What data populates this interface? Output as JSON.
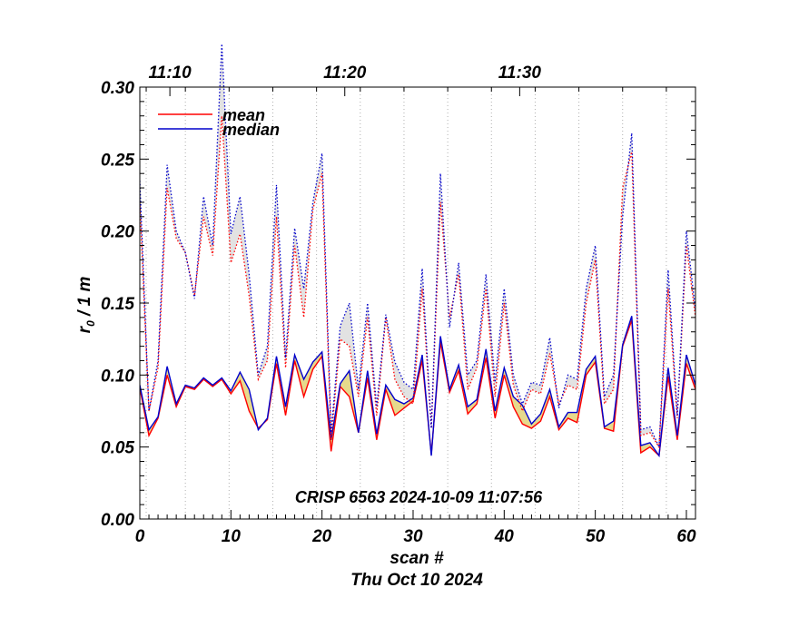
{
  "chart_data": {
    "type": "line",
    "title": "",
    "xlabel": "scan #",
    "xlabel2": "Thu Oct 10 2024",
    "ylabel": "r",
    "ylabel_sub": "0",
    "ylabel_suffix": " / 1 m",
    "annotation": "CRISP 6563 2024-10-09 11:07:56",
    "xlim": [
      0,
      61
    ],
    "ylim": [
      0,
      0.3
    ],
    "xticks": [
      0,
      10,
      20,
      30,
      40,
      50,
      60
    ],
    "yticks": [
      0.0,
      0.05,
      0.1,
      0.15,
      0.2,
      0.25,
      0.3
    ],
    "ytick_labels": [
      "0.00",
      "0.05",
      "0.10",
      "0.15",
      "0.20",
      "0.25",
      "0.30"
    ],
    "time_axis": {
      "labels": [
        "11:10",
        "11:20",
        "11:30"
      ],
      "scan_positions": [
        3.3,
        22.5,
        41.7
      ]
    },
    "time_gridlines": [
      0.7,
      5.0,
      9.8,
      14.6,
      19.4,
      24.2,
      29.0,
      33.8,
      38.6,
      43.4,
      48.2,
      53.0,
      57.8
    ],
    "legend": {
      "location": "top-left",
      "entries": [
        {
          "name": "mean",
          "color": "#ff0000"
        },
        {
          "name": "median",
          "color": "#0000cc"
        }
      ]
    },
    "colors": {
      "mean": "#ff0000",
      "median": "#0000cc",
      "low_band": "#e6d98c",
      "high_band": "#e2e2e2"
    },
    "series": [
      {
        "name": "mean (low order)",
        "style": "solid",
        "color": "#ff0000",
        "values": [
          0.091,
          0.058,
          0.07,
          0.1,
          0.078,
          0.092,
          0.09,
          0.097,
          0.092,
          0.097,
          0.087,
          0.096,
          0.075,
          0.063,
          0.069,
          0.108,
          0.072,
          0.11,
          0.085,
          0.104,
          0.113,
          0.047,
          0.092,
          0.085,
          0.06,
          0.098,
          0.055,
          0.09,
          0.072,
          0.077,
          0.082,
          0.11,
          0.045,
          0.123,
          0.088,
          0.103,
          0.073,
          0.08,
          0.112,
          0.07,
          0.1,
          0.078,
          0.066,
          0.063,
          0.068,
          0.085,
          0.062,
          0.07,
          0.067,
          0.1,
          0.109,
          0.063,
          0.061,
          0.12,
          0.138,
          0.046,
          0.05,
          0.044,
          0.099,
          0.055,
          0.108,
          0.09
        ]
      },
      {
        "name": "median (low order)",
        "style": "solid",
        "color": "#0000cc",
        "values": [
          0.093,
          0.062,
          0.071,
          0.106,
          0.08,
          0.093,
          0.091,
          0.098,
          0.093,
          0.098,
          0.089,
          0.102,
          0.09,
          0.062,
          0.07,
          0.113,
          0.078,
          0.114,
          0.097,
          0.109,
          0.116,
          0.055,
          0.094,
          0.103,
          0.06,
          0.103,
          0.059,
          0.093,
          0.083,
          0.08,
          0.084,
          0.114,
          0.044,
          0.127,
          0.09,
          0.107,
          0.078,
          0.083,
          0.118,
          0.075,
          0.105,
          0.085,
          0.079,
          0.066,
          0.073,
          0.09,
          0.064,
          0.074,
          0.074,
          0.104,
          0.113,
          0.064,
          0.068,
          0.121,
          0.141,
          0.051,
          0.053,
          0.044,
          0.105,
          0.058,
          0.114,
          0.093
        ]
      },
      {
        "name": "mean (high order)",
        "style": "dotted",
        "color": "#ff0000",
        "values": [
          0.22,
          0.075,
          0.105,
          0.23,
          0.195,
          0.185,
          0.155,
          0.21,
          0.183,
          0.28,
          0.178,
          0.198,
          0.155,
          0.097,
          0.11,
          0.21,
          0.105,
          0.19,
          0.14,
          0.215,
          0.24,
          0.055,
          0.125,
          0.12,
          0.085,
          0.14,
          0.072,
          0.14,
          0.097,
          0.085,
          0.08,
          0.16,
          0.063,
          0.22,
          0.14,
          0.17,
          0.09,
          0.105,
          0.16,
          0.085,
          0.15,
          0.093,
          0.075,
          0.09,
          0.087,
          0.115,
          0.08,
          0.093,
          0.09,
          0.15,
          0.18,
          0.08,
          0.09,
          0.23,
          0.255,
          0.058,
          0.06,
          0.05,
          0.16,
          0.07,
          0.19,
          0.14
        ]
      },
      {
        "name": "median (high order)",
        "style": "dotted",
        "color": "#0000cc",
        "values": [
          0.235,
          0.075,
          0.11,
          0.246,
          0.2,
          0.185,
          0.153,
          0.224,
          0.19,
          0.33,
          0.198,
          0.224,
          0.17,
          0.1,
          0.12,
          0.232,
          0.112,
          0.202,
          0.16,
          0.22,
          0.254,
          0.06,
          0.134,
          0.15,
          0.09,
          0.15,
          0.078,
          0.142,
          0.109,
          0.095,
          0.09,
          0.174,
          0.063,
          0.24,
          0.133,
          0.178,
          0.1,
          0.11,
          0.17,
          0.095,
          0.16,
          0.1,
          0.08,
          0.095,
          0.093,
          0.126,
          0.077,
          0.1,
          0.097,
          0.16,
          0.19,
          0.085,
          0.1,
          0.21,
          0.268,
          0.062,
          0.064,
          0.05,
          0.173,
          0.072,
          0.2,
          0.145
        ]
      }
    ]
  }
}
